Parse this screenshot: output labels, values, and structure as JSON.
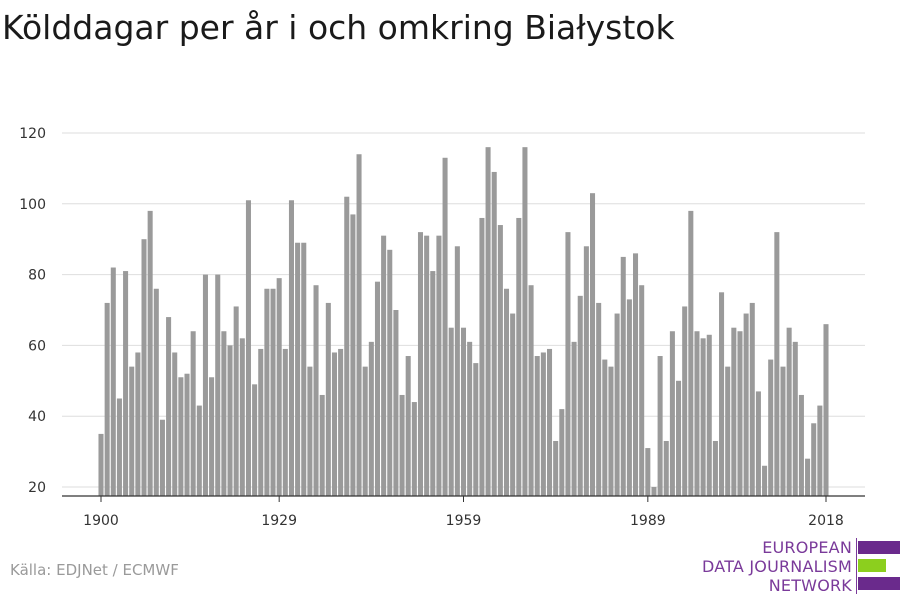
{
  "title": "Kölddagar per år i och omkring Białystok",
  "source": "Källa: EDJNet / ECMWF",
  "logo": {
    "lines": [
      "EUROPEAN",
      "DATA JOURNALISM",
      "NETWORK"
    ],
    "colors": [
      "#6a2a8c",
      "#8ccf1e",
      "#6a2a8c"
    ]
  },
  "chart_data": {
    "type": "bar",
    "start_year": 1900,
    "x_ticks": [
      1900,
      1929,
      1959,
      1989,
      2018
    ],
    "y_ticks": [
      20,
      40,
      60,
      80,
      100,
      120
    ],
    "ylim": [
      20,
      122
    ],
    "grid": true,
    "bar_color": "#9a9a9a",
    "years": [
      1900,
      1901,
      1902,
      1903,
      1904,
      1905,
      1906,
      1907,
      1908,
      1909,
      1910,
      1911,
      1912,
      1913,
      1914,
      1915,
      1916,
      1917,
      1918,
      1919,
      1920,
      1921,
      1922,
      1923,
      1924,
      1925,
      1926,
      1927,
      1928,
      1929,
      1930,
      1931,
      1932,
      1933,
      1934,
      1935,
      1936,
      1937,
      1938,
      1939,
      1940,
      1941,
      1942,
      1943,
      1944,
      1945,
      1946,
      1947,
      1948,
      1949,
      1950,
      1951,
      1952,
      1953,
      1954,
      1955,
      1956,
      1957,
      1958,
      1959,
      1960,
      1961,
      1962,
      1963,
      1964,
      1965,
      1966,
      1967,
      1968,
      1969,
      1970,
      1971,
      1972,
      1973,
      1974,
      1975,
      1976,
      1977,
      1978,
      1979,
      1980,
      1981,
      1982,
      1983,
      1984,
      1985,
      1986,
      1987,
      1988,
      1989,
      1990,
      1991,
      1992,
      1993,
      1994,
      1995,
      1996,
      1997,
      1998,
      1999,
      2000,
      2001,
      2002,
      2003,
      2004,
      2005,
      2006,
      2007,
      2008,
      2009,
      2010,
      2011,
      2012,
      2013,
      2014,
      2015,
      2016,
      2017,
      2018
    ],
    "values": [
      35,
      72,
      82,
      45,
      81,
      54,
      58,
      90,
      98,
      76,
      39,
      68,
      58,
      51,
      52,
      64,
      43,
      80,
      51,
      80,
      64,
      60,
      71,
      62,
      101,
      49,
      59,
      76,
      76,
      79,
      59,
      101,
      89,
      89,
      54,
      77,
      46,
      72,
      58,
      59,
      102,
      97,
      114,
      54,
      61,
      78,
      91,
      87,
      70,
      46,
      57,
      44,
      92,
      91,
      81,
      91,
      113,
      65,
      88,
      65,
      61,
      55,
      96,
      116,
      109,
      94,
      76,
      69,
      96,
      116,
      77,
      57,
      58,
      59,
      33,
      42,
      92,
      61,
      74,
      88,
      103,
      72,
      56,
      54,
      69,
      85,
      73,
      86,
      77,
      31,
      20,
      57,
      33,
      64,
      50,
      71,
      98,
      64,
      62,
      63,
      33,
      75,
      54,
      65,
      64,
      69,
      72,
      47,
      26,
      56,
      92,
      54,
      65,
      61,
      46,
      28,
      38,
      43,
      66
    ]
  }
}
